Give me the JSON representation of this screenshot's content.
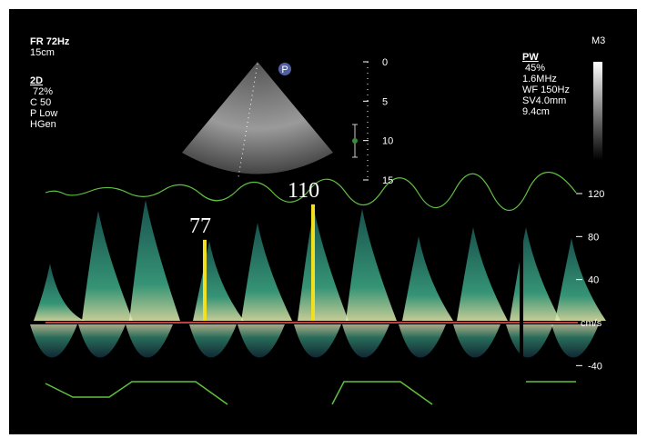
{
  "header": {
    "frame_rate": "FR 72Hz",
    "depth": "15cm"
  },
  "mode_2d": {
    "title": "2D",
    "gain": "72%",
    "compression": "C 50",
    "power": "P Low",
    "frequency": "HGen"
  },
  "mode_pw": {
    "title": "PW",
    "gain": "45%",
    "frequency": "1.6MHz",
    "wall_filter": "WF 150Hz",
    "sample_volume": "SV4.0mm",
    "gate_depth": "9.4cm"
  },
  "map_label": "M3",
  "probe_marker": "P",
  "depth_scale": {
    "ticks": [
      0,
      5,
      10,
      15
    ]
  },
  "velocity_scale": {
    "ticks": [
      120,
      80,
      40,
      -40
    ],
    "baseline_label": "cm/s"
  },
  "measurements": [
    77,
    110
  ]
}
